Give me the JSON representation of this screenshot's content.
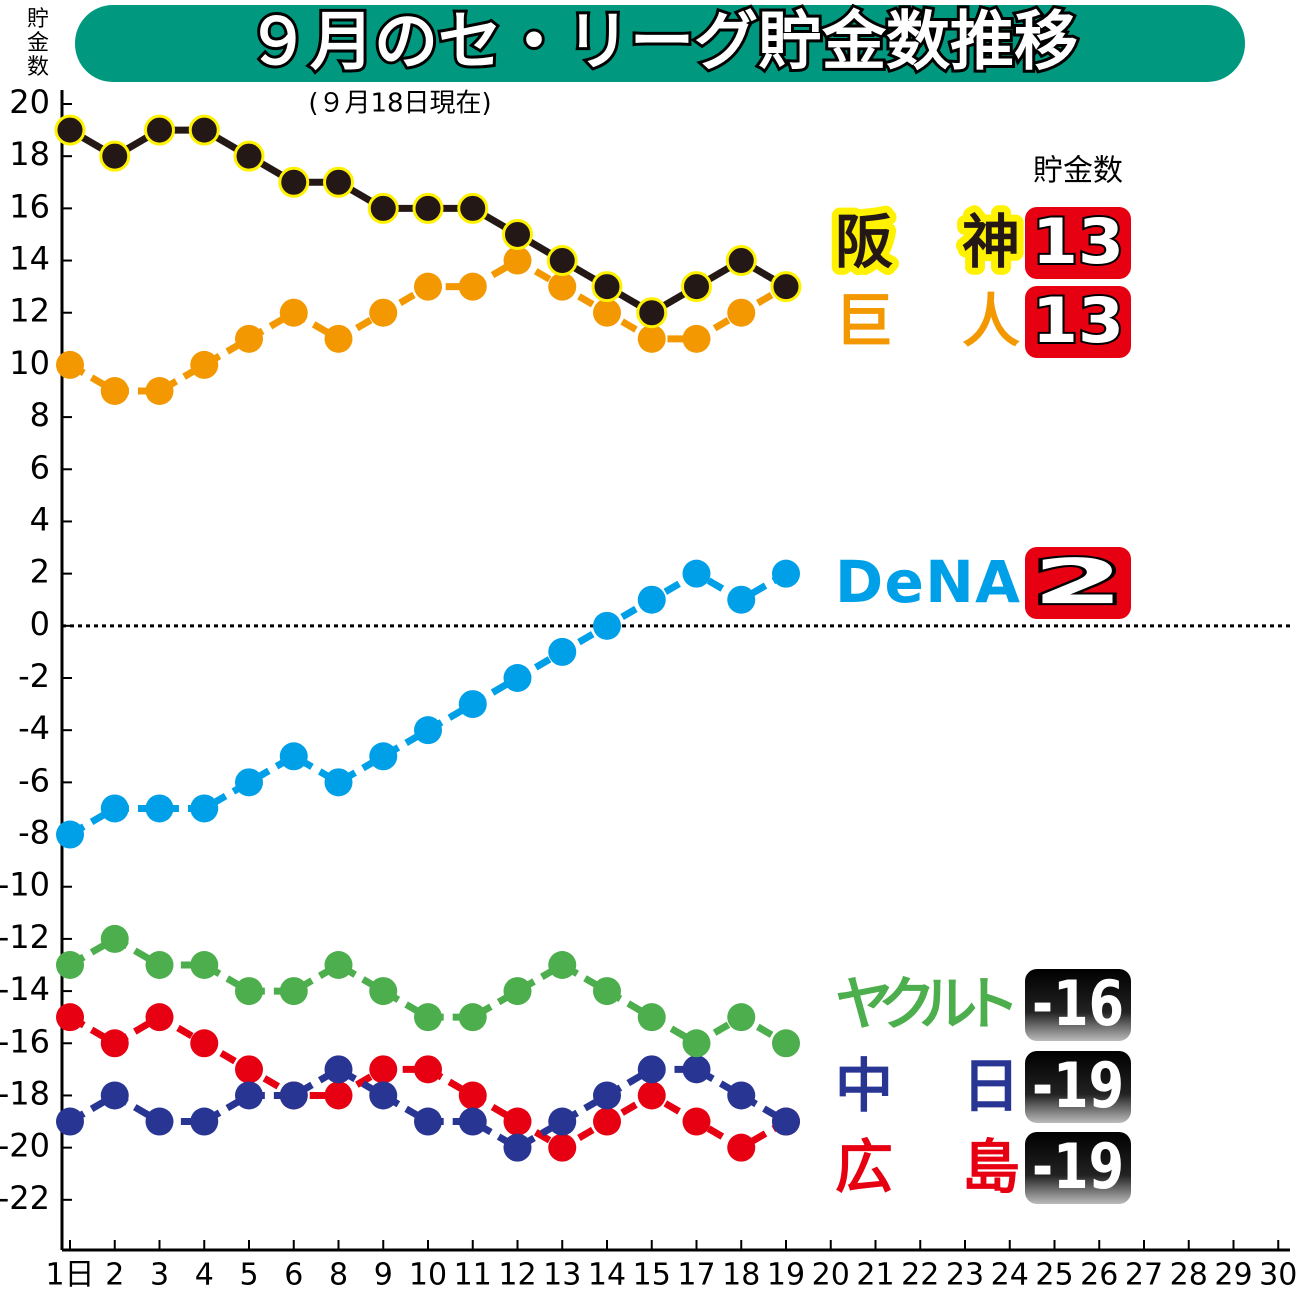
{
  "chart_data": {
    "type": "line",
    "title": "９月のセ・リーグ貯金数推移",
    "subtitle": "(９月18日現在)",
    "y_label": "貯金数",
    "legend_title": "貯金数",
    "categories": [
      "1日",
      "2",
      "3",
      "4",
      "5",
      "6",
      "8",
      "9",
      "10",
      "11",
      "12",
      "13",
      "14",
      "15",
      "17",
      "18",
      "19",
      "20",
      "21",
      "22",
      "23",
      "24",
      "25",
      "26",
      "27",
      "28",
      "29",
      "30"
    ],
    "ylim": [
      -24,
      20
    ],
    "yticks": [
      -22,
      -20,
      -18,
      -16,
      -14,
      -12,
      -10,
      -8,
      -6,
      -4,
      -2,
      0,
      2,
      4,
      6,
      8,
      10,
      12,
      14,
      16,
      18,
      20
    ],
    "zero_line": true,
    "series": [
      {
        "name": "阪　神",
        "color": "#231815",
        "marker_edge": "#fff200",
        "dashed": false,
        "final": 13,
        "values": [
          19,
          18,
          19,
          19,
          18,
          17,
          17,
          16,
          16,
          16,
          15,
          14,
          13,
          12,
          13,
          14,
          13,
          null,
          null,
          null,
          null,
          null,
          null,
          null,
          null,
          null,
          null,
          null
        ]
      },
      {
        "name": "巨　人",
        "color": "#f39800",
        "dashed": true,
        "final": 13,
        "values": [
          10,
          9,
          9,
          10,
          11,
          12,
          11,
          12,
          13,
          13,
          14,
          13,
          12,
          11,
          11,
          12,
          13,
          null,
          null,
          null,
          null,
          null,
          null,
          null,
          null,
          null,
          null,
          null
        ]
      },
      {
        "name": "DeNA",
        "color": "#00a0e9",
        "dashed": true,
        "final": 2,
        "values": [
          -8,
          -7,
          -7,
          -7,
          -6,
          -5,
          -6,
          -5,
          -4,
          -3,
          -2,
          -1,
          0,
          1,
          2,
          1,
          2,
          null,
          null,
          null,
          null,
          null,
          null,
          null,
          null,
          null,
          null,
          null
        ]
      },
      {
        "name": "ヤクルト",
        "color": "#4cae4c",
        "dashed": true,
        "final": -16,
        "values": [
          -13,
          -12,
          -13,
          -13,
          -14,
          -14,
          -13,
          -14,
          -15,
          -15,
          -14,
          -13,
          -14,
          -15,
          -16,
          -15,
          -16,
          null,
          null,
          null,
          null,
          null,
          null,
          null,
          null,
          null,
          null,
          null
        ]
      },
      {
        "name": "中　日",
        "color": "#283593",
        "dashed": true,
        "final": -19,
        "values": [
          -19,
          -18,
          -19,
          -19,
          -18,
          -18,
          -17,
          -18,
          -19,
          -19,
          -20,
          -19,
          -18,
          -17,
          -17,
          -18,
          -19,
          null,
          null,
          null,
          null,
          null,
          null,
          null,
          null,
          null,
          null,
          null
        ]
      },
      {
        "name": "広　島",
        "color": "#e60012",
        "dashed": true,
        "final": -19,
        "values": [
          -15,
          -16,
          -15,
          -16,
          -17,
          -18,
          -18,
          -17,
          -17,
          -18,
          -19,
          -20,
          -19,
          -18,
          -19,
          -20,
          -19,
          null,
          null,
          null,
          null,
          null,
          null,
          null,
          null,
          null,
          null,
          null
        ]
      }
    ]
  }
}
